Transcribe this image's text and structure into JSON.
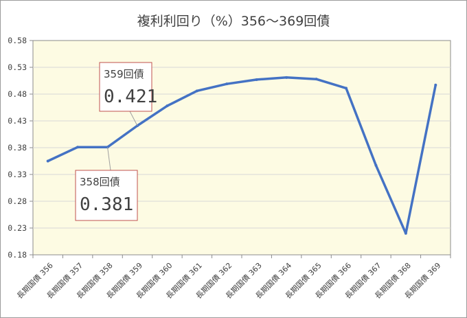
{
  "chart_data": {
    "type": "line",
    "title": "複利利回り（%）356～369回債",
    "xlabel": "",
    "ylabel": "",
    "categories": [
      "長期国債 356",
      "長期国債 357",
      "長期国債 358",
      "長期国債 359",
      "長期国債 360",
      "長期国債 361",
      "長期国債 362",
      "長期国債 363",
      "長期国債 364",
      "長期国債 365",
      "長期国債 366",
      "長期国債 367",
      "長期国債 368",
      "長期国債 369"
    ],
    "series": [
      {
        "values": [
          0.355,
          0.381,
          0.381,
          0.421,
          0.458,
          0.486,
          0.499,
          0.507,
          0.511,
          0.508,
          0.491,
          0.347,
          0.22,
          0.497
        ]
      }
    ],
    "ylim": [
      0.18,
      0.58
    ],
    "yticks": [
      0.18,
      0.23,
      0.28,
      0.33,
      0.38,
      0.43,
      0.48,
      0.53,
      0.58
    ],
    "ytick_labels": [
      "0.18",
      "0.23",
      "0.28",
      "0.33",
      "0.38",
      "0.43",
      "0.48",
      "0.53",
      "0.58"
    ],
    "grid": true,
    "annotations": [
      {
        "index": 3,
        "label": "359回債",
        "value": "0.421"
      },
      {
        "index": 2,
        "label": "358回債",
        "value": "0.381"
      }
    ],
    "colors": {
      "line": "#4472c4",
      "plot_bg": "#fdfbe3",
      "grid": "#d7d7d7",
      "axis": "#8b8b8b",
      "callout_border": "#c0504d",
      "text": "#404040"
    }
  }
}
